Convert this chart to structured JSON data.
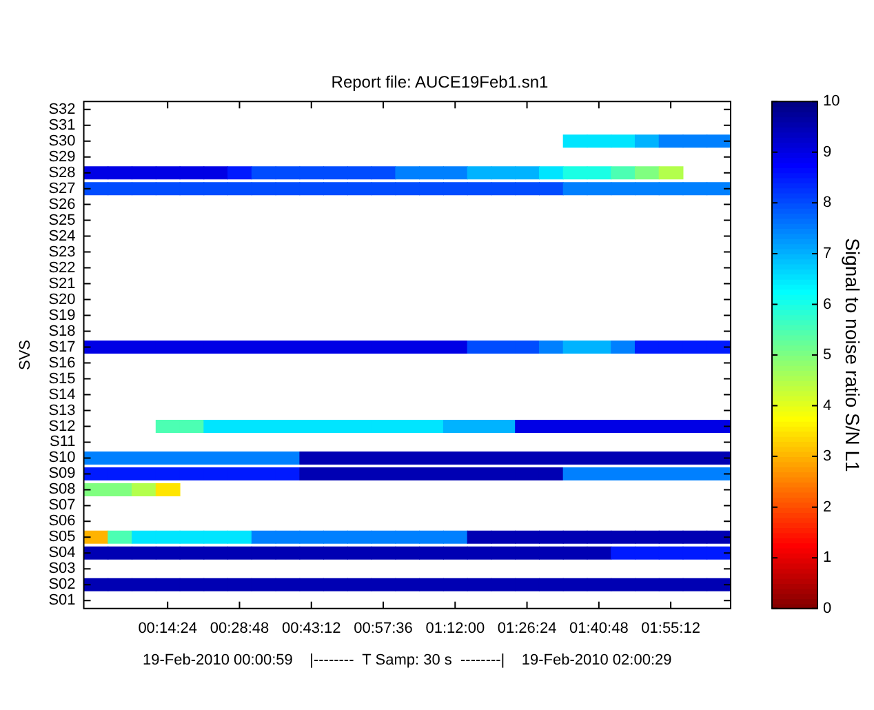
{
  "chart_data": {
    "type": "heatmap",
    "title": "Report file: AUCE19Feb1.sn1",
    "xlabel": "19-Feb-2010 00:00:59    |--------  T Samp: 30 s  --------|    19-Feb-2010 02:00:29",
    "ylabel": "SVS",
    "clabel": "Signal to noise ratio S/N L1",
    "categories": [
      null,
      null,
      null,
      "00:14:24",
      null,
      null,
      "00:28:48",
      null,
      null,
      "00:43:12",
      null,
      null,
      "00:57:36",
      null,
      null,
      "01:12:00",
      null,
      null,
      "01:26:24",
      null,
      null,
      "01:40:48",
      null,
      null,
      "01:55:12",
      null,
      null
    ],
    "y_categories": [
      "S32",
      "S31",
      "S30",
      "S29",
      "S28",
      "S27",
      "S26",
      "S25",
      "S24",
      "S23",
      "S22",
      "S21",
      "S20",
      "S19",
      "S18",
      "S17",
      "S16",
      "S15",
      "S14",
      "S13",
      "S12",
      "S11",
      "S10",
      "S09",
      "S08",
      "S07",
      "S06",
      "S05",
      "S04",
      "S03",
      "S02",
      "S01"
    ],
    "clim": [
      0,
      10
    ],
    "cticks": [
      0,
      1,
      2,
      3,
      4,
      5,
      6,
      7,
      8,
      9,
      10
    ],
    "cells": [
      [
        null,
        null,
        null,
        null,
        null,
        null,
        null,
        null,
        null,
        null,
        null,
        null,
        null,
        null,
        null,
        null,
        null,
        null,
        null,
        null,
        null,
        null,
        null,
        null,
        null,
        null,
        null
      ],
      [
        null,
        null,
        null,
        null,
        null,
        null,
        null,
        null,
        null,
        null,
        null,
        null,
        null,
        null,
        null,
        null,
        null,
        null,
        null,
        null,
        null,
        null,
        null,
        null,
        null,
        null,
        null
      ],
      [
        null,
        null,
        null,
        null,
        null,
        null,
        null,
        null,
        null,
        null,
        null,
        null,
        null,
        null,
        null,
        null,
        null,
        null,
        null,
        null,
        6.5,
        6.5,
        6.5,
        7,
        7.5,
        7.5,
        7.5
      ],
      [
        null,
        null,
        null,
        null,
        null,
        null,
        null,
        null,
        null,
        null,
        null,
        null,
        null,
        null,
        null,
        null,
        null,
        null,
        null,
        null,
        null,
        null,
        null,
        null,
        null,
        null,
        null
      ],
      [
        9,
        9,
        9,
        9,
        9,
        9,
        8.5,
        8,
        8,
        8,
        8,
        8,
        8,
        7.5,
        7.5,
        7.5,
        7,
        7,
        7,
        6.5,
        6,
        6,
        5.5,
        5,
        4.5,
        null,
        null
      ],
      [
        8,
        8,
        8,
        8,
        8,
        8,
        8,
        8,
        8,
        8,
        8,
        8,
        8,
        8,
        8,
        8,
        8,
        8,
        8,
        8,
        7.5,
        7.5,
        7.5,
        7.5,
        7.5,
        7.5,
        7.5
      ],
      [
        null,
        null,
        null,
        null,
        null,
        null,
        null,
        null,
        null,
        null,
        null,
        null,
        null,
        null,
        null,
        null,
        null,
        null,
        null,
        null,
        null,
        null,
        null,
        null,
        null,
        null,
        null
      ],
      [
        null,
        null,
        null,
        null,
        null,
        null,
        null,
        null,
        null,
        null,
        null,
        null,
        null,
        null,
        null,
        null,
        null,
        null,
        null,
        null,
        null,
        null,
        null,
        null,
        null,
        null,
        null
      ],
      [
        null,
        null,
        null,
        null,
        null,
        null,
        null,
        null,
        null,
        null,
        null,
        null,
        null,
        null,
        null,
        null,
        null,
        null,
        null,
        null,
        null,
        null,
        null,
        null,
        null,
        null,
        null
      ],
      [
        null,
        null,
        null,
        null,
        null,
        null,
        null,
        null,
        null,
        null,
        null,
        null,
        null,
        null,
        null,
        null,
        null,
        null,
        null,
        null,
        null,
        null,
        null,
        null,
        null,
        null,
        null
      ],
      [
        null,
        null,
        null,
        null,
        null,
        null,
        null,
        null,
        null,
        null,
        null,
        null,
        null,
        null,
        null,
        null,
        null,
        null,
        null,
        null,
        null,
        null,
        null,
        null,
        null,
        null,
        null
      ],
      [
        null,
        null,
        null,
        null,
        null,
        null,
        null,
        null,
        null,
        null,
        null,
        null,
        null,
        null,
        null,
        null,
        null,
        null,
        null,
        null,
        null,
        null,
        null,
        null,
        null,
        null,
        null
      ],
      [
        null,
        null,
        null,
        null,
        null,
        null,
        null,
        null,
        null,
        null,
        null,
        null,
        null,
        null,
        null,
        null,
        null,
        null,
        null,
        null,
        null,
        null,
        null,
        null,
        null,
        null,
        null
      ],
      [
        null,
        null,
        null,
        null,
        null,
        null,
        null,
        null,
        null,
        null,
        null,
        null,
        null,
        null,
        null,
        null,
        null,
        null,
        null,
        null,
        null,
        null,
        null,
        null,
        null,
        null,
        null
      ],
      [
        null,
        null,
        null,
        null,
        null,
        null,
        null,
        null,
        null,
        null,
        null,
        null,
        null,
        null,
        null,
        null,
        null,
        null,
        null,
        null,
        null,
        null,
        null,
        null,
        null,
        null,
        null
      ],
      [
        9,
        9,
        9,
        9,
        9,
        9,
        9,
        9,
        9,
        9,
        9,
        9,
        9,
        9,
        9,
        9,
        8,
        8,
        8,
        7.5,
        7,
        7,
        7.5,
        8.5,
        8.5,
        8.5,
        8.5
      ],
      [
        null,
        null,
        null,
        null,
        null,
        null,
        null,
        null,
        null,
        null,
        null,
        null,
        null,
        null,
        null,
        null,
        null,
        null,
        null,
        null,
        null,
        null,
        null,
        null,
        null,
        null,
        null
      ],
      [
        null,
        null,
        null,
        null,
        null,
        null,
        null,
        null,
        null,
        null,
        null,
        null,
        null,
        null,
        null,
        null,
        null,
        null,
        null,
        null,
        null,
        null,
        null,
        null,
        null,
        null,
        null
      ],
      [
        null,
        null,
        null,
        null,
        null,
        null,
        null,
        null,
        null,
        null,
        null,
        null,
        null,
        null,
        null,
        null,
        null,
        null,
        null,
        null,
        null,
        null,
        null,
        null,
        null,
        null,
        null
      ],
      [
        null,
        null,
        null,
        null,
        null,
        null,
        null,
        null,
        null,
        null,
        null,
        null,
        null,
        null,
        null,
        null,
        null,
        null,
        null,
        null,
        null,
        null,
        null,
        null,
        null,
        null,
        null
      ],
      [
        null,
        null,
        null,
        5.5,
        5.5,
        6.5,
        6.5,
        6.5,
        6.5,
        6.5,
        6.5,
        6.5,
        6.5,
        6.5,
        6.5,
        7,
        7,
        7,
        9,
        9,
        9,
        9,
        9,
        9,
        9,
        9,
        9
      ],
      [
        null,
        null,
        null,
        null,
        null,
        null,
        null,
        null,
        null,
        null,
        null,
        null,
        null,
        null,
        null,
        null,
        null,
        null,
        null,
        null,
        null,
        null,
        null,
        null,
        null,
        null,
        null
      ],
      [
        7.5,
        7.5,
        7.5,
        7.5,
        7.5,
        7.5,
        7.5,
        7.5,
        7.5,
        9.5,
        9.5,
        9.5,
        9.5,
        9.5,
        9.5,
        9.5,
        9.5,
        9.5,
        9.5,
        9.5,
        9.5,
        9.5,
        9.5,
        9.5,
        9.5,
        9.5,
        9.5
      ],
      [
        8.5,
        8.5,
        8.5,
        8.5,
        8.5,
        8.5,
        8.5,
        8.5,
        8.5,
        9.5,
        9.5,
        9.5,
        9.5,
        9.5,
        9.5,
        9.5,
        9.5,
        9.5,
        9.5,
        9.5,
        7.5,
        7.5,
        7.5,
        7.5,
        7.5,
        7.5,
        7.5
      ],
      [
        5,
        5,
        4.5,
        3.5,
        null,
        null,
        null,
        null,
        null,
        null,
        null,
        null,
        null,
        null,
        null,
        null,
        null,
        null,
        null,
        null,
        null,
        null,
        null,
        null,
        null,
        null,
        null
      ],
      [
        null,
        null,
        null,
        null,
        null,
        null,
        null,
        null,
        null,
        null,
        null,
        null,
        null,
        null,
        null,
        null,
        null,
        null,
        null,
        null,
        null,
        null,
        null,
        null,
        null,
        null,
        null
      ],
      [
        null,
        null,
        null,
        null,
        null,
        null,
        null,
        null,
        null,
        null,
        null,
        null,
        null,
        null,
        null,
        null,
        null,
        null,
        null,
        null,
        null,
        null,
        null,
        null,
        null,
        null,
        null
      ],
      [
        3,
        5.5,
        6.5,
        6.5,
        6.5,
        6.5,
        6.5,
        7.5,
        7.5,
        7.5,
        7.5,
        7.5,
        7.5,
        7.5,
        7.5,
        7.5,
        9.5,
        9.5,
        9.5,
        9.5,
        9.5,
        9.5,
        9.5,
        9.5,
        9.5,
        9.5,
        9.5
      ],
      [
        9.5,
        9.5,
        9.5,
        9.5,
        9.5,
        9.5,
        9.5,
        9.5,
        9.5,
        9.5,
        9.5,
        9.5,
        9.5,
        9.5,
        9.5,
        9.5,
        9.5,
        9.5,
        9.5,
        9.5,
        9.5,
        9.5,
        8.5,
        8.5,
        8.5,
        8.5,
        8.5
      ],
      [
        null,
        null,
        null,
        null,
        null,
        null,
        null,
        null,
        null,
        null,
        null,
        null,
        null,
        null,
        null,
        null,
        null,
        null,
        null,
        null,
        null,
        null,
        null,
        null,
        null,
        null,
        null
      ],
      [
        9.5,
        9.5,
        9.5,
        9.5,
        9.5,
        9.5,
        9.5,
        9.5,
        9.5,
        9.5,
        9.5,
        9.5,
        9.5,
        9.5,
        9.5,
        9.5,
        9.5,
        9.5,
        9.5,
        9.5,
        9.5,
        9.5,
        9.5,
        9.5,
        9.5,
        9.5,
        9.5
      ],
      [
        null,
        null,
        null,
        null,
        null,
        null,
        null,
        null,
        null,
        null,
        null,
        null,
        null,
        null,
        null,
        null,
        null,
        null,
        null,
        null,
        null,
        null,
        null,
        null,
        null,
        null,
        null
      ]
    ]
  }
}
